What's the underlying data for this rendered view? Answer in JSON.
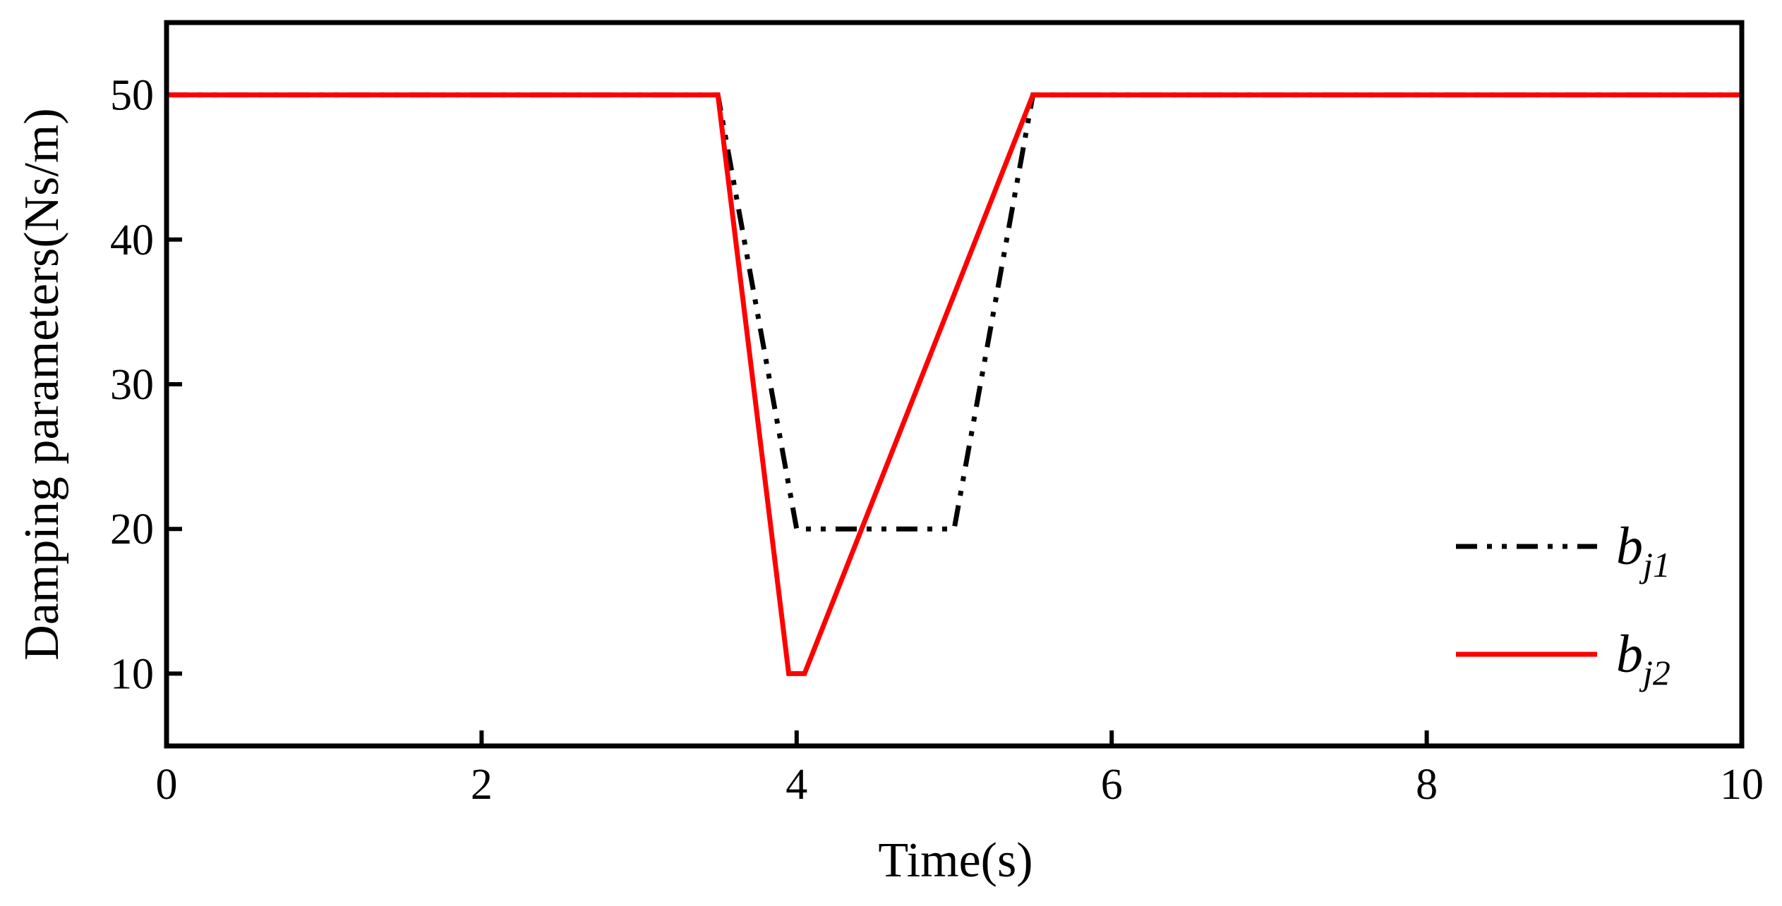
{
  "chart_data": {
    "type": "line",
    "title": "",
    "xlabel": "Time(s)",
    "ylabel": "Damping parameters(Ns/m)",
    "xlim": [
      0,
      10
    ],
    "ylim": [
      5,
      55
    ],
    "x_ticks": [
      0,
      2,
      4,
      6,
      8,
      10
    ],
    "y_ticks": [
      10,
      20,
      30,
      40,
      50
    ],
    "grid": false,
    "legend_position": "bottom-right",
    "series": [
      {
        "name": "b_j1",
        "legend_main": "b",
        "legend_sub": "j1",
        "color": "#000000",
        "style": "dash-dot-dot",
        "x": [
          0,
          3.5,
          4.0,
          5.0,
          5.5,
          10
        ],
        "y": [
          50,
          50,
          20,
          20,
          50,
          50
        ]
      },
      {
        "name": "b_j2",
        "legend_main": "b",
        "legend_sub": "j2",
        "color": "#ff0000",
        "style": "solid",
        "x": [
          0,
          3.5,
          3.95,
          4.05,
          5.5,
          10
        ],
        "y": [
          50,
          50,
          10,
          10,
          50,
          50
        ]
      }
    ]
  }
}
